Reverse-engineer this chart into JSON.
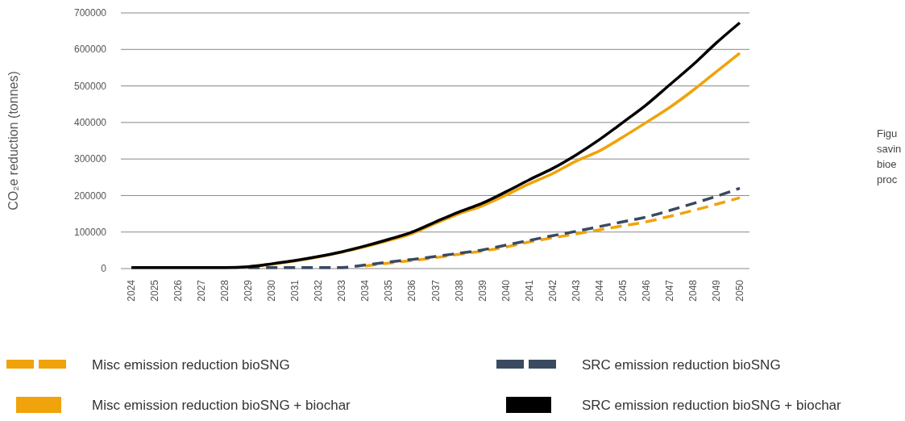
{
  "chart_data": {
    "type": "line",
    "ylabel": "CO₂e reduction (tonnes)",
    "categories": [
      "2024",
      "2025",
      "2026",
      "2027",
      "2028",
      "2029",
      "2030",
      "2031",
      "2032",
      "2033",
      "2034",
      "2035",
      "2036",
      "2037",
      "2038",
      "2039",
      "2040",
      "2041",
      "2042",
      "2043",
      "2044",
      "2045",
      "2046",
      "2047",
      "2048",
      "2049",
      "2050"
    ],
    "series": [
      {
        "name": "Misc emission reduction bioSNG",
        "color": "#f0a30a",
        "line_style": "dashed",
        "values": [
          null,
          null,
          null,
          null,
          null,
          null,
          null,
          null,
          null,
          null,
          7000,
          15000,
          22000,
          30000,
          39000,
          48000,
          59000,
          73000,
          84000,
          95000,
          106000,
          117000,
          128000,
          143000,
          159000,
          176000,
          194000
        ]
      },
      {
        "name": "SRC emission reduction bioSNG",
        "color": "#3a4a60",
        "line_style": "dashed",
        "values": [
          null,
          null,
          null,
          null,
          null,
          3000,
          3000,
          3000,
          3000,
          3000,
          10000,
          18000,
          25000,
          33000,
          42000,
          51000,
          64000,
          77000,
          90000,
          102000,
          115000,
          128000,
          141000,
          159000,
          178000,
          198000,
          220000
        ]
      },
      {
        "name": "Misc emission reduction bioSNG + biochar",
        "color": "#f0a30a",
        "line_style": "solid",
        "values": [
          null,
          null,
          null,
          null,
          null,
          5000,
          12000,
          21000,
          32000,
          45000,
          60000,
          77000,
          96000,
          124000,
          150000,
          172000,
          201000,
          232000,
          260000,
          294000,
          322000,
          360000,
          400000,
          441000,
          488000,
          539000,
          590000
        ]
      },
      {
        "name": "SRC emission reduction bioSNG + biochar",
        "color": "#000000",
        "line_style": "solid",
        "values": [
          3000,
          3000,
          3000,
          3000,
          3000,
          5000,
          13000,
          22000,
          33000,
          46000,
          62000,
          80000,
          100000,
          128000,
          155000,
          179000,
          210000,
          243000,
          274000,
          311000,
          353000,
          400000,
          448000,
          503000,
          558000,
          618000,
          673000
        ]
      }
    ],
    "ylim": [
      0,
      700000
    ],
    "yticks": [
      0,
      100000,
      200000,
      300000,
      400000,
      500000,
      600000,
      700000
    ],
    "grid": "y",
    "legend": "bottom",
    "marker": "none",
    "annotations": [
      "Figu",
      "savin",
      "bioe",
      "proc"
    ]
  }
}
